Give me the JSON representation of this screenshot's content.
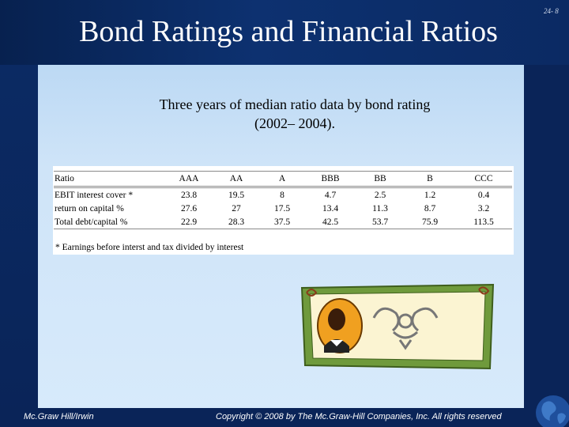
{
  "slide": {
    "title": "Bond Ratings and Financial Ratios",
    "number": "24- 8",
    "subtitle_line1": "Three years of median ratio data by bond rating",
    "subtitle_line2": "(2002– 2004)."
  },
  "table": {
    "headers": [
      "Ratio",
      "AAA",
      "AA",
      "A",
      "BBB",
      "BB",
      "B",
      "CCC"
    ],
    "rows": [
      [
        "EBIT interest cover *",
        "23.8",
        "19.5",
        "8",
        "4.7",
        "2.5",
        "1.2",
        "0.4"
      ],
      [
        "return on capital %",
        "27.6",
        "27",
        "17.5",
        "13.4",
        "11.3",
        "8.7",
        "3.2"
      ],
      [
        "Total debt/capital %",
        "22.9",
        "28.3",
        "37.5",
        "42.5",
        "53.7",
        "75.9",
        "113.5"
      ]
    ],
    "footnote": "* Earnings before interst and tax divided by interest"
  },
  "footer": {
    "left": "Mc.Graw Hill/Irwin",
    "center": "Copyright © 2008 by The Mc.Graw-Hill Companies, Inc. All rights reserved"
  },
  "colors": {
    "frame": "#0b2a63",
    "content_bg": "#cfe4f8",
    "certificate_border": "#6f9a3c"
  },
  "icons": [
    "certificate-illustration",
    "globe-icon"
  ]
}
